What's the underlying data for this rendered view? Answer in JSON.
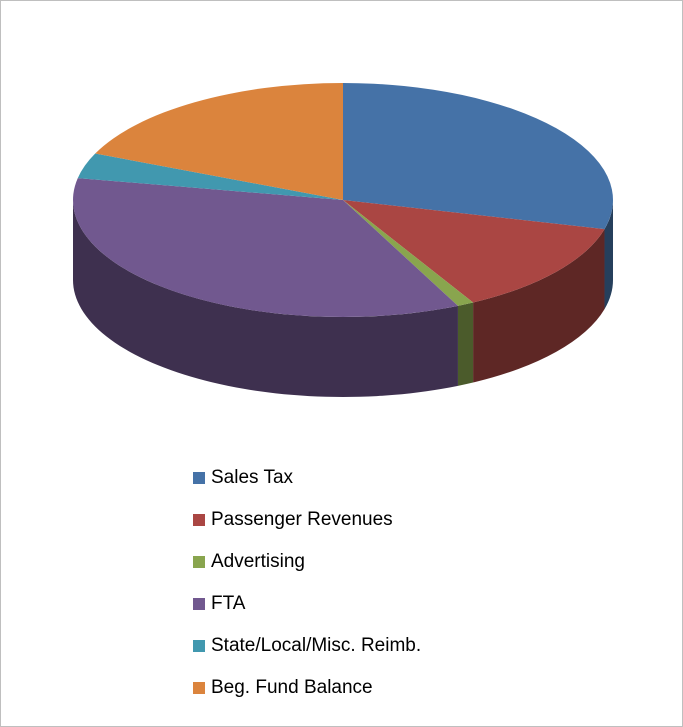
{
  "chart_data": {
    "type": "pie3d",
    "categories": [
      "Sales Tax",
      "Passenger Revenues",
      "Advertising",
      "FTA",
      "State/Local/Misc. Reimb.",
      "Beg. Fund Balance"
    ],
    "values": [
      29,
      13,
      1,
      35,
      3.5,
      18.5
    ],
    "colors": [
      "#4572a7",
      "#aa4643",
      "#89a54e",
      "#71588f",
      "#4198af",
      "#db843d"
    ],
    "legend": "bottom"
  }
}
